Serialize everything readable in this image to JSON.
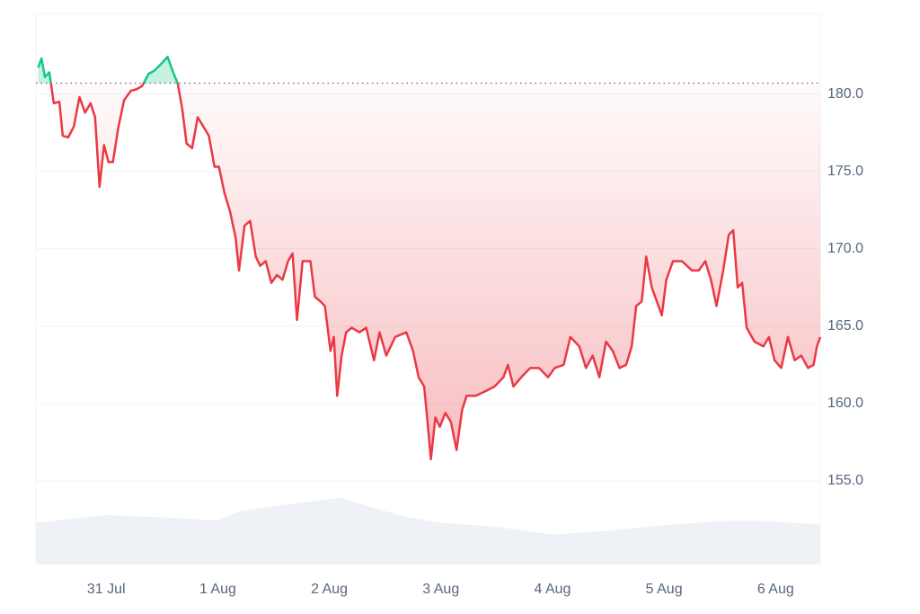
{
  "chart_data": {
    "type": "line",
    "baseline": 180.7,
    "xlim": [
      -0.63,
      6.4
    ],
    "xticks": [
      {
        "value": 0,
        "label": "31 Jul"
      },
      {
        "value": 1,
        "label": "1 Aug"
      },
      {
        "value": 2,
        "label": "2 Aug"
      },
      {
        "value": 3,
        "label": "3 Aug"
      },
      {
        "value": 4,
        "label": "4 Aug"
      },
      {
        "value": 5,
        "label": "5 Aug"
      },
      {
        "value": 6,
        "label": "6 Aug"
      }
    ],
    "ylim": [
      149.6,
      185.2
    ],
    "yticks": [
      {
        "value": 155,
        "label": "155.0"
      },
      {
        "value": 160,
        "label": "160.0"
      },
      {
        "value": 165,
        "label": "165.0"
      },
      {
        "value": 170,
        "label": "170.0"
      },
      {
        "value": 175,
        "label": "175.0"
      },
      {
        "value": 180,
        "label": "180.0"
      }
    ],
    "grid": true,
    "up_color": "#16c784",
    "down_color": "#ea3943",
    "series": [
      {
        "x": [
          -0.61,
          -0.58,
          -0.55,
          -0.51,
          -0.47,
          -0.42,
          -0.39,
          -0.34,
          -0.29,
          -0.24,
          -0.19,
          -0.14,
          -0.1,
          -0.06,
          -0.02,
          0.02,
          0.06,
          0.11,
          0.16,
          0.22,
          0.27,
          0.32,
          0.38,
          0.43,
          0.5,
          0.55,
          0.6,
          0.64,
          0.68,
          0.72,
          0.77,
          0.82,
          0.87,
          0.92,
          0.97,
          1.01,
          1.06,
          1.11,
          1.16,
          1.19,
          1.24,
          1.29,
          1.34,
          1.38,
          1.43,
          1.48,
          1.53,
          1.58,
          1.63,
          1.67,
          1.71,
          1.76,
          1.83,
          1.87,
          1.92,
          1.96,
          2.01,
          2.04,
          2.07,
          2.11,
          2.15,
          2.2,
          2.27,
          2.33,
          2.4,
          2.45,
          2.51,
          2.59,
          2.69,
          2.75,
          2.8,
          2.85,
          2.88,
          2.91,
          2.95,
          2.99,
          3.04,
          3.09,
          3.14,
          3.19,
          3.23,
          3.31,
          3.4,
          3.48,
          3.56,
          3.6,
          3.65,
          3.72,
          3.8,
          3.88,
          3.96,
          4.02,
          4.1,
          4.16,
          4.24,
          4.3,
          4.36,
          4.42,
          4.48,
          4.54,
          4.6,
          4.66,
          4.71,
          4.75,
          4.8,
          4.84,
          4.89,
          4.95,
          4.98,
          5.02,
          5.08,
          5.16,
          5.25,
          5.31,
          5.37,
          5.42,
          5.47,
          5.53,
          5.58,
          5.62,
          5.66,
          5.7,
          5.74,
          5.81,
          5.89,
          5.94,
          5.99,
          6.05,
          6.11,
          6.17,
          6.23,
          6.29,
          6.34,
          6.37,
          6.4
        ],
        "values": [
          181.7,
          182.3,
          181.1,
          181.4,
          179.4,
          179.5,
          177.3,
          177.2,
          177.9,
          179.8,
          178.8,
          179.4,
          178.5,
          174.0,
          176.7,
          175.6,
          175.6,
          177.9,
          179.6,
          180.2,
          180.3,
          180.5,
          181.3,
          181.5,
          182.0,
          182.4,
          181.4,
          180.7,
          179.1,
          176.8,
          176.5,
          178.5,
          177.9,
          177.3,
          175.3,
          175.3,
          173.6,
          172.4,
          170.7,
          168.6,
          171.5,
          171.8,
          169.5,
          168.9,
          169.2,
          167.8,
          168.3,
          168.0,
          169.2,
          169.7,
          165.4,
          169.2,
          169.2,
          166.9,
          166.6,
          166.3,
          163.4,
          164.3,
          160.5,
          163.1,
          164.6,
          164.9,
          164.6,
          164.9,
          162.8,
          164.6,
          163.1,
          164.3,
          164.6,
          163.4,
          161.7,
          161.1,
          158.8,
          156.4,
          159.1,
          158.5,
          159.4,
          158.8,
          157.0,
          159.6,
          160.5,
          160.5,
          160.8,
          161.1,
          161.7,
          162.5,
          161.1,
          161.7,
          162.3,
          162.3,
          161.7,
          162.3,
          162.5,
          164.3,
          163.7,
          162.3,
          163.1,
          161.7,
          164.0,
          163.4,
          162.3,
          162.5,
          163.7,
          166.3,
          166.6,
          169.5,
          167.5,
          166.3,
          165.7,
          168.0,
          169.2,
          169.2,
          168.6,
          168.6,
          169.2,
          168.0,
          166.3,
          168.6,
          170.9,
          171.2,
          167.5,
          167.8,
          164.9,
          164.0,
          163.7,
          164.3,
          162.8,
          162.3,
          164.3,
          162.8,
          163.1,
          162.3,
          162.5,
          163.7,
          164.3
        ]
      }
    ],
    "volume": {
      "color": "#eef1f5",
      "ylim": [
        0,
        700
      ],
      "x": [
        -0.63,
        0,
        0.5,
        1.0,
        1.2,
        1.6,
        2.0,
        2.1,
        2.3,
        2.7,
        3.0,
        3.5,
        4.0,
        4.5,
        5.0,
        5.5,
        5.8,
        6.4
      ],
      "values": [
        53,
        63,
        60,
        56,
        68,
        76,
        83,
        85,
        76,
        60,
        53,
        48,
        38,
        43,
        50,
        55,
        56,
        51
      ]
    }
  }
}
